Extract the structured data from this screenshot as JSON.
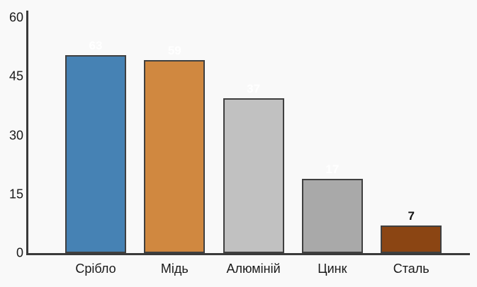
{
  "chart_data": {
    "type": "bar",
    "categories": [
      "Срібло",
      "Мідь",
      "Алюміній",
      "Цинк",
      "Сталь"
    ],
    "values": [
      63,
      59,
      37,
      17,
      7
    ],
    "bar_value_labels": [
      "63",
      "59",
      "37",
      "17",
      "7"
    ],
    "rendered_bar_heights_in_axis_units": [
      50.4,
      49.2,
      39.4,
      18.9,
      7.0
    ],
    "title": "",
    "xlabel": "",
    "ylabel": "",
    "ylim": [
      0,
      60
    ],
    "yticks": [
      0,
      15,
      30,
      45,
      60
    ],
    "grid": false,
    "legend": false,
    "bar_colors": [
      "#4682b4",
      "#d08840",
      "#c1c1c1",
      "#a9a9a9",
      "#8b4513"
    ],
    "bar_value_label_colors": [
      "#ffffff",
      "#ffffff",
      "#ffffff",
      "#ffffff",
      "#111111"
    ],
    "axis_color": "#3a3a3a",
    "bar_border_color": "#404040",
    "background_color": "#f9f9f9"
  }
}
